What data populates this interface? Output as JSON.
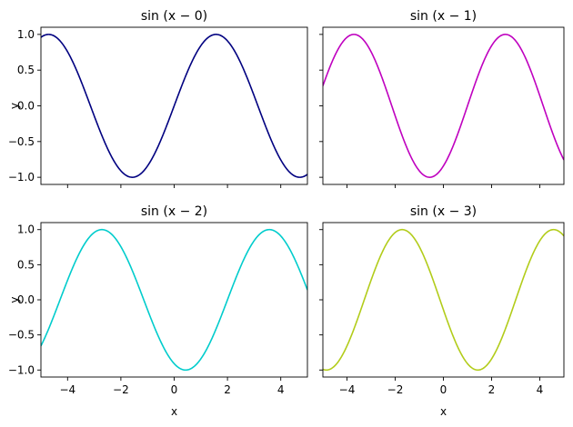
{
  "chart_data": [
    {
      "type": "line",
      "title": "sin (x − 0)",
      "xlabel": "",
      "ylabel": "y",
      "xlim": [
        -5,
        5
      ],
      "ylim": [
        -1.1,
        1.1
      ],
      "x_ticks": [
        -4,
        -2,
        0,
        2,
        4
      ],
      "y_ticks": [
        -1.0,
        -0.5,
        0.0,
        0.5,
        1.0
      ],
      "x_tick_labels": [],
      "y_tick_labels": [
        "−1.0",
        "−0.5",
        "0.0",
        "0.5",
        "1.0"
      ],
      "series": [
        {
          "function": "sin(x - 0)",
          "shift": 0,
          "color": "#000080"
        }
      ]
    },
    {
      "type": "line",
      "title": "sin (x − 1)",
      "xlabel": "",
      "ylabel": "",
      "xlim": [
        -5,
        5
      ],
      "ylim": [
        -1.1,
        1.1
      ],
      "x_ticks": [
        -4,
        -2,
        0,
        2,
        4
      ],
      "y_ticks": [
        -1.0,
        -0.5,
        0.0,
        0.5,
        1.0
      ],
      "x_tick_labels": [],
      "y_tick_labels": [],
      "series": [
        {
          "function": "sin(x - 1)",
          "shift": 1,
          "color": "#bf00bf"
        }
      ]
    },
    {
      "type": "line",
      "title": "sin (x − 2)",
      "xlabel": "x",
      "ylabel": "y",
      "xlim": [
        -5,
        5
      ],
      "ylim": [
        -1.1,
        1.1
      ],
      "x_ticks": [
        -4,
        -2,
        0,
        2,
        4
      ],
      "y_ticks": [
        -1.0,
        -0.5,
        0.0,
        0.5,
        1.0
      ],
      "x_tick_labels": [
        "−4",
        "−2",
        "0",
        "2",
        "4"
      ],
      "y_tick_labels": [
        "−1.0",
        "−0.5",
        "0.0",
        "0.5",
        "1.0"
      ],
      "series": [
        {
          "function": "sin(x - 2)",
          "shift": 2,
          "color": "#00cccc"
        }
      ]
    },
    {
      "type": "line",
      "title": "sin (x − 3)",
      "xlabel": "x",
      "ylabel": "",
      "xlim": [
        -5,
        5
      ],
      "ylim": [
        -1.1,
        1.1
      ],
      "x_ticks": [
        -4,
        -2,
        0,
        2,
        4
      ],
      "y_ticks": [
        -1.0,
        -0.5,
        0.0,
        0.5,
        1.0
      ],
      "x_tick_labels": [
        "−4",
        "−2",
        "0",
        "2",
        "4"
      ],
      "y_tick_labels": [],
      "series": [
        {
          "function": "sin(x - 3)",
          "shift": 3,
          "color": "#b2cc1a"
        }
      ]
    }
  ]
}
